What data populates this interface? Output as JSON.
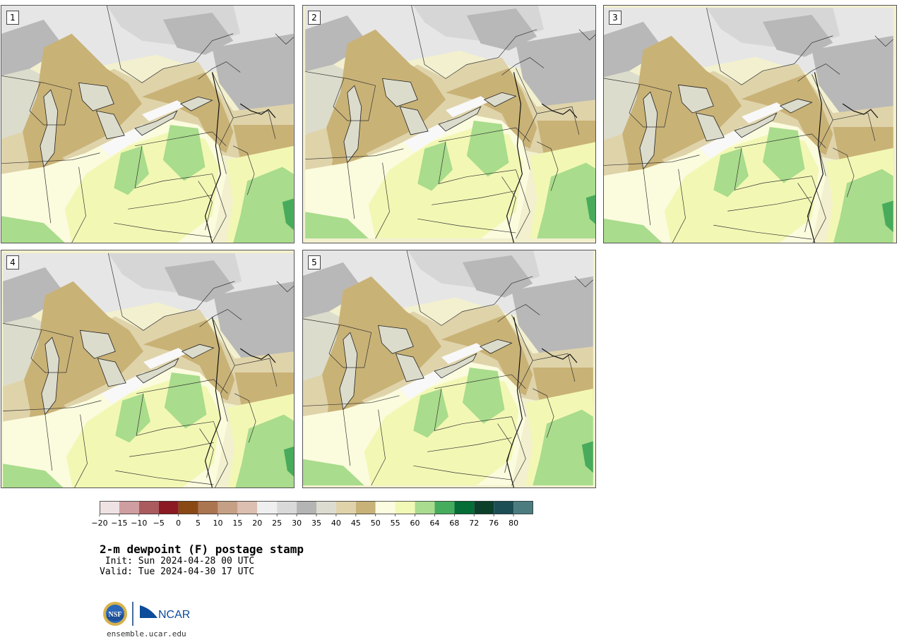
{
  "panels": [
    {
      "label": "1",
      "variant": 0
    },
    {
      "label": "2",
      "variant": 1
    },
    {
      "label": "3",
      "variant": 2
    },
    {
      "label": "4",
      "variant": 3
    },
    {
      "label": "5",
      "variant": 4
    }
  ],
  "colorbar": {
    "ticks": [
      "−20",
      "−15",
      "−10",
      "−5",
      "0",
      "5",
      "10",
      "15",
      "20",
      "25",
      "30",
      "35",
      "40",
      "45",
      "50",
      "55",
      "60",
      "64",
      "68",
      "72",
      "76",
      "80"
    ],
    "colors": [
      "#efe2e2",
      "#cf9ea0",
      "#ab5a5e",
      "#8c1a24",
      "#8a4814",
      "#ab7550",
      "#c6a085",
      "#dcbfb0",
      "#efefef",
      "#d9d9d9",
      "#b4b4b4",
      "#dcdcd0",
      "#e0d3aa",
      "#c8b278",
      "#fcfce0",
      "#f2f8b6",
      "#aadc90",
      "#46ac5e",
      "#046e36",
      "#0c402a",
      "#1c4e56",
      "#4c7c80"
    ]
  },
  "title": "2-m dewpoint (F) postage stamp",
  "init": " Init: Sun 2024-04-28 00 UTC",
  "valid": "Valid: Tue 2024-04-30 17 UTC",
  "logo": {
    "nsf": "NSF",
    "ncar": "NCAR"
  },
  "site": "ensemble.ucar.edu"
}
